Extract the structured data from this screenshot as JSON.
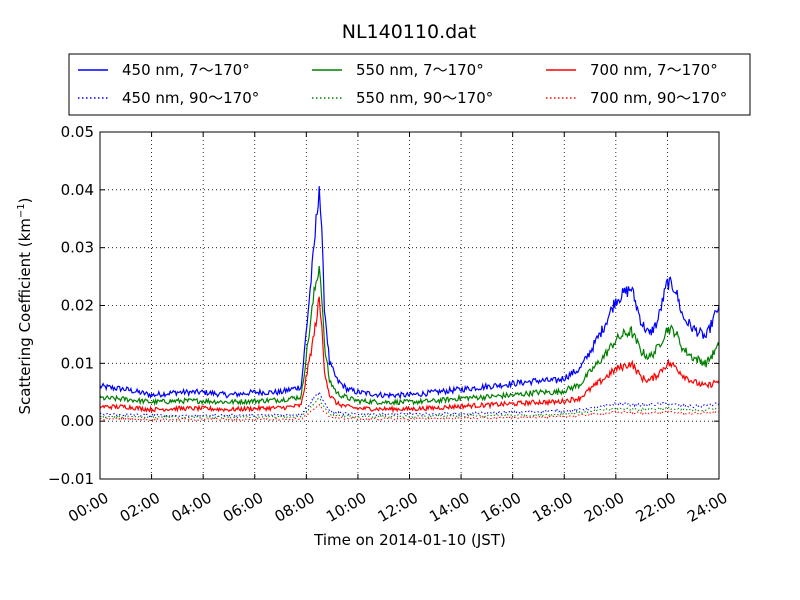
{
  "chart_data": {
    "type": "line",
    "title": "NL140110.dat",
    "xlabel": "Time on 2014-01-10 (JST)",
    "ylabel_main": "Scattering Coefficient (km",
    "ylabel_exp": "−1",
    "ylabel_tail": ")",
    "xlim": [
      0,
      24
    ],
    "ylim": [
      -0.01,
      0.05
    ],
    "x_ticks": [
      {
        "value": 0,
        "label": "00:00"
      },
      {
        "value": 2,
        "label": "02:00"
      },
      {
        "value": 4,
        "label": "04:00"
      },
      {
        "value": 6,
        "label": "06:00"
      },
      {
        "value": 8,
        "label": "08:00"
      },
      {
        "value": 10,
        "label": "10:00"
      },
      {
        "value": 12,
        "label": "12:00"
      },
      {
        "value": 14,
        "label": "14:00"
      },
      {
        "value": 16,
        "label": "16:00"
      },
      {
        "value": 18,
        "label": "18:00"
      },
      {
        "value": 20,
        "label": "20:00"
      },
      {
        "value": 22,
        "label": "22:00"
      },
      {
        "value": 24,
        "label": "24:00"
      }
    ],
    "y_ticks": [
      {
        "value": -0.01,
        "label": "−0.01"
      },
      {
        "value": 0.0,
        "label": "0.00"
      },
      {
        "value": 0.01,
        "label": "0.01"
      },
      {
        "value": 0.02,
        "label": "0.02"
      },
      {
        "value": 0.03,
        "label": "0.03"
      },
      {
        "value": 0.04,
        "label": "0.04"
      },
      {
        "value": 0.05,
        "label": "0.05"
      }
    ],
    "grid": true,
    "legend_position": "top",
    "series": [
      {
        "name": "450 nm, 7～170°",
        "color": "#0000ff",
        "style": "solid",
        "x": [
          0,
          1,
          2,
          3,
          4,
          5,
          6,
          7,
          7.8,
          8.3,
          8.5,
          8.6,
          8.7,
          8.9,
          9.2,
          9.6,
          10,
          11,
          12,
          13,
          14,
          15,
          16,
          17,
          17.7,
          18,
          18.6,
          19,
          19.5,
          20,
          20.3,
          20.6,
          21,
          21.3,
          21.6,
          22,
          22.3,
          22.6,
          23,
          23.5,
          24
        ],
        "y": [
          0.006,
          0.0055,
          0.0045,
          0.005,
          0.005,
          0.0045,
          0.005,
          0.005,
          0.006,
          0.03,
          0.041,
          0.032,
          0.02,
          0.01,
          0.007,
          0.0055,
          0.005,
          0.0045,
          0.0045,
          0.005,
          0.0055,
          0.006,
          0.0065,
          0.007,
          0.007,
          0.0075,
          0.009,
          0.012,
          0.016,
          0.021,
          0.022,
          0.023,
          0.017,
          0.015,
          0.017,
          0.024,
          0.023,
          0.018,
          0.016,
          0.0145,
          0.02
        ]
      },
      {
        "name": "550 nm, 7～170°",
        "color": "#007f00",
        "style": "solid",
        "x": [
          0,
          1,
          2,
          3,
          4,
          5,
          6,
          7,
          7.8,
          8.3,
          8.5,
          8.6,
          8.7,
          8.9,
          9.2,
          9.6,
          10,
          11,
          12,
          13,
          14,
          15,
          16,
          17,
          17.7,
          18,
          18.6,
          19,
          19.5,
          20,
          20.3,
          20.6,
          21,
          21.3,
          21.6,
          22,
          22.3,
          22.6,
          23,
          23.5,
          24
        ],
        "y": [
          0.004,
          0.0038,
          0.0033,
          0.0035,
          0.0035,
          0.0033,
          0.0035,
          0.0037,
          0.0042,
          0.022,
          0.027,
          0.022,
          0.013,
          0.007,
          0.0048,
          0.004,
          0.0035,
          0.0033,
          0.0033,
          0.0035,
          0.004,
          0.0042,
          0.0045,
          0.005,
          0.005,
          0.0053,
          0.0063,
          0.0085,
          0.011,
          0.014,
          0.015,
          0.0155,
          0.012,
          0.011,
          0.0125,
          0.016,
          0.0155,
          0.0125,
          0.011,
          0.01,
          0.013
        ]
      },
      {
        "name": "700 nm, 7～170°",
        "color": "#ff0000",
        "style": "solid",
        "x": [
          0,
          1,
          2,
          3,
          4,
          5,
          6,
          7,
          7.8,
          8.3,
          8.5,
          8.6,
          8.7,
          8.9,
          9.2,
          9.6,
          10,
          11,
          12,
          13,
          14,
          15,
          16,
          17,
          17.7,
          18,
          18.6,
          19,
          19.5,
          20,
          20.3,
          20.6,
          21,
          21.3,
          21.6,
          22,
          22.3,
          22.6,
          23,
          23.5,
          24
        ],
        "y": [
          0.0025,
          0.0025,
          0.002,
          0.0022,
          0.0022,
          0.002,
          0.0022,
          0.0023,
          0.0027,
          0.015,
          0.021,
          0.016,
          0.009,
          0.0045,
          0.003,
          0.0025,
          0.0022,
          0.0021,
          0.0021,
          0.0023,
          0.0026,
          0.0028,
          0.003,
          0.0033,
          0.0033,
          0.0035,
          0.004,
          0.0055,
          0.0072,
          0.009,
          0.0095,
          0.01,
          0.0075,
          0.007,
          0.008,
          0.01,
          0.0095,
          0.008,
          0.0068,
          0.006,
          0.007
        ]
      },
      {
        "name": "450 nm, 90～170°",
        "color": "#0000ff",
        "style": "dotted",
        "x": [
          0,
          2,
          4,
          6,
          7.8,
          8.3,
          8.5,
          8.7,
          9,
          10,
          12,
          14,
          16,
          18,
          19,
          20,
          21,
          22,
          23,
          24
        ],
        "y": [
          0.0012,
          0.001,
          0.001,
          0.001,
          0.0012,
          0.004,
          0.005,
          0.003,
          0.0015,
          0.0012,
          0.0012,
          0.0013,
          0.0015,
          0.0018,
          0.0022,
          0.003,
          0.0028,
          0.003,
          0.0025,
          0.003
        ]
      },
      {
        "name": "550 nm, 90～170°",
        "color": "#007f00",
        "style": "dotted",
        "x": [
          0,
          2,
          4,
          6,
          7.8,
          8.3,
          8.5,
          8.7,
          9,
          10,
          12,
          14,
          16,
          18,
          19,
          20,
          21,
          22,
          23,
          24
        ],
        "y": [
          0.0008,
          0.0007,
          0.0007,
          0.0007,
          0.0008,
          0.003,
          0.004,
          0.0022,
          0.001,
          0.0008,
          0.0008,
          0.0009,
          0.001,
          0.0012,
          0.0016,
          0.0022,
          0.002,
          0.0022,
          0.0018,
          0.0022
        ]
      },
      {
        "name": "700 nm, 90～170°",
        "color": "#ff0000",
        "style": "dotted",
        "x": [
          0,
          2,
          4,
          6,
          7.8,
          8.3,
          8.5,
          8.7,
          9,
          10,
          12,
          14,
          16,
          18,
          19,
          20,
          21,
          22,
          23,
          24
        ],
        "y": [
          0.0004,
          0.0003,
          0.0003,
          0.0003,
          0.0004,
          0.002,
          0.003,
          0.0015,
          0.0006,
          0.0004,
          0.0004,
          0.0005,
          0.0006,
          0.0008,
          0.0011,
          0.0016,
          0.0014,
          0.0016,
          0.0013,
          0.0016
        ]
      }
    ]
  }
}
